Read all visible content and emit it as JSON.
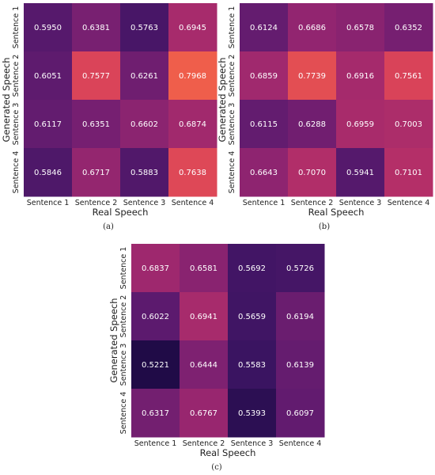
{
  "chart_data": [
    {
      "type": "heatmap",
      "caption": "(a)",
      "xlabel": "Real Speech",
      "ylabel": "Generated Speech",
      "x_categories": [
        "Sentence 1",
        "Sentence 2",
        "Sentence 3",
        "Sentence 4"
      ],
      "y_categories": [
        "Sentence 1",
        "Sentence 2",
        "Sentence 3",
        "Sentence 4"
      ],
      "values": [
        [
          0.595,
          0.6381,
          0.5763,
          0.6945
        ],
        [
          0.6051,
          0.7577,
          0.6261,
          0.7968
        ],
        [
          0.6117,
          0.6351,
          0.6602,
          0.6874
        ],
        [
          0.5846,
          0.6717,
          0.5883,
          0.7638
        ]
      ],
      "value_labels": [
        [
          "0.5950",
          "0.6381",
          "0.5763",
          "0.6945"
        ],
        [
          "0.6051",
          "0.7577",
          "0.6261",
          "0.7968"
        ],
        [
          "0.6117",
          "0.6351",
          "0.6602",
          "0.6874"
        ],
        [
          "0.5846",
          "0.6717",
          "0.5883",
          "0.7638"
        ]
      ]
    },
    {
      "type": "heatmap",
      "caption": "(b)",
      "xlabel": "Real Speech",
      "ylabel": "Generated Speech",
      "x_categories": [
        "Sentence 1",
        "Sentence 2",
        "Sentence 3",
        "Sentence 4"
      ],
      "y_categories": [
        "Sentence 1",
        "Sentence 2",
        "Sentence 3",
        "Sentence 4"
      ],
      "values": [
        [
          0.6124,
          0.6686,
          0.6578,
          0.6352
        ],
        [
          0.6859,
          0.7739,
          0.6916,
          0.7561
        ],
        [
          0.6115,
          0.6288,
          0.6959,
          0.7003
        ],
        [
          0.6643,
          0.707,
          0.5941,
          0.7101
        ]
      ],
      "value_labels": [
        [
          "0.6124",
          "0.6686",
          "0.6578",
          "0.6352"
        ],
        [
          "0.6859",
          "0.7739",
          "0.6916",
          "0.7561"
        ],
        [
          "0.6115",
          "0.6288",
          "0.6959",
          "0.7003"
        ],
        [
          "0.6643",
          "0.7070",
          "0.5941",
          "0.7101"
        ]
      ]
    },
    {
      "type": "heatmap",
      "caption": "(c)",
      "xlabel": "Real Speech",
      "ylabel": "Generated Speech",
      "x_categories": [
        "Sentence 1",
        "Sentence 2",
        "Sentence 3",
        "Sentence 4"
      ],
      "y_categories": [
        "Sentence 1",
        "Sentence 2",
        "Sentence 3",
        "Sentence 4"
      ],
      "values": [
        [
          0.6837,
          0.6581,
          0.5692,
          0.5726
        ],
        [
          0.6022,
          0.6941,
          0.5659,
          0.6194
        ],
        [
          0.5221,
          0.6444,
          0.5583,
          0.6139
        ],
        [
          0.6317,
          0.6767,
          0.5393,
          0.6097
        ]
      ],
      "value_labels": [
        [
          "0.6837",
          "0.6581",
          "0.5692",
          "0.5726"
        ],
        [
          "0.6022",
          "0.6941",
          "0.5659",
          "0.6194"
        ],
        [
          "0.5221",
          "0.6444",
          "0.5583",
          "0.6139"
        ],
        [
          "0.6317",
          "0.6767",
          "0.5393",
          "0.6097"
        ]
      ]
    }
  ],
  "colormap": {
    "name": "rocket-like",
    "stops": [
      "#1e0b45",
      "#3b1462",
      "#5a1a6e",
      "#7a2071",
      "#9b276f",
      "#bc3266",
      "#dc4558",
      "#f1604a"
    ],
    "vmin": 0.52,
    "vmax": 0.8
  }
}
